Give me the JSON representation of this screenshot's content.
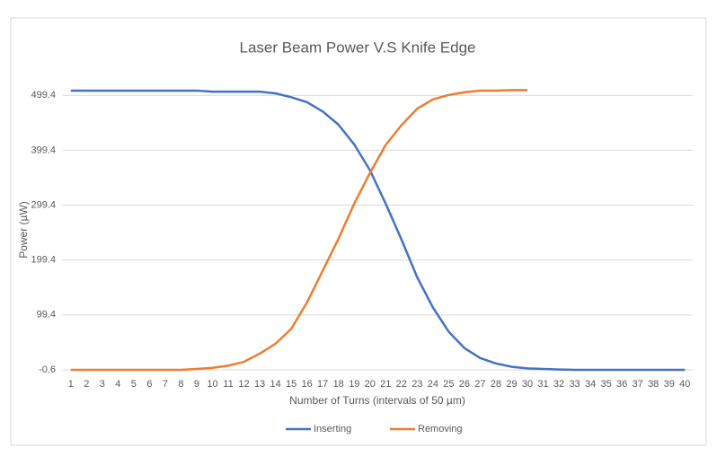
{
  "chart_data": {
    "type": "line",
    "title": "Laser Beam Power V.S Knife Edge",
    "x_label": "Number of Turns (intervals of 50 µm)",
    "y_label": "Power (µW)",
    "categories": [
      "1",
      "2",
      "3",
      "4",
      "5",
      "6",
      "7",
      "8",
      "9",
      "10",
      "11",
      "12",
      "13",
      "14",
      "15",
      "16",
      "17",
      "18",
      "19",
      "20",
      "21",
      "22",
      "23",
      "24",
      "25",
      "26",
      "27",
      "28",
      "29",
      "30",
      "31",
      "32",
      "33",
      "34",
      "35",
      "36",
      "37",
      "38",
      "39",
      "40"
    ],
    "series": [
      {
        "name": "Inserting",
        "color": "#4472c4",
        "values": [
          508,
          508,
          508,
          508,
          508,
          508,
          508,
          508,
          508,
          506,
          506,
          506,
          506,
          503,
          496,
          487,
          470,
          446,
          410,
          363,
          302,
          237,
          168,
          113,
          69,
          39,
          21,
          11,
          5,
          2,
          1,
          0,
          -0.6,
          -0.6,
          -0.6,
          -0.6,
          -0.6,
          -0.6,
          -0.6,
          -0.6
        ]
      },
      {
        "name": "Removing",
        "color": "#ed7d31",
        "values": [
          -0.6,
          -0.6,
          -0.6,
          -0.6,
          -0.6,
          -0.6,
          -0.6,
          -0.6,
          1,
          3,
          7,
          14,
          29,
          47,
          74,
          122,
          180,
          238,
          302,
          358,
          409,
          445,
          475,
          492,
          500,
          505,
          508,
          508,
          509,
          509,
          null,
          null,
          null,
          null,
          null,
          null,
          null,
          null,
          null,
          null
        ]
      }
    ],
    "ylim": [
      -0.6,
      520
    ],
    "yticks": [
      -0.6,
      99.4,
      199.4,
      299.4,
      399.4,
      499.4
    ],
    "grid": true,
    "legend": "bottom"
  }
}
